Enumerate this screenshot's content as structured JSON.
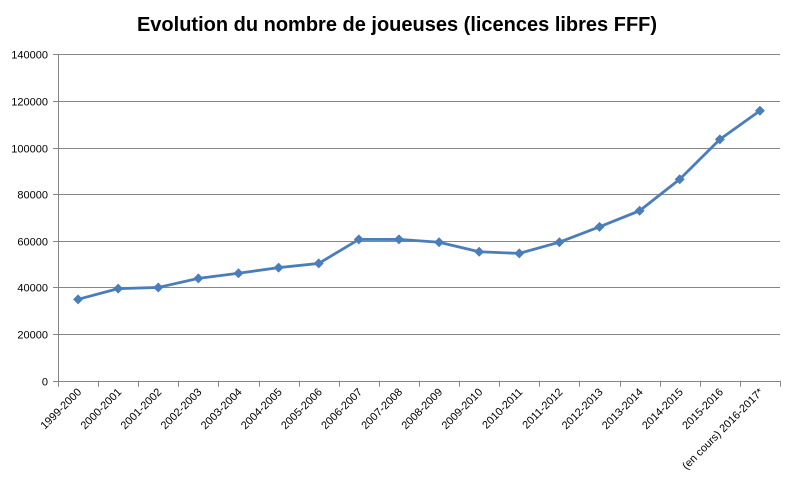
{
  "chart_data": {
    "type": "line",
    "title": "Evolution du nombre de joueuses (licences libres FFF)",
    "xlabel": "",
    "ylabel": "",
    "ylim": [
      0,
      140000
    ],
    "yticks": [
      "0",
      "20000",
      "40000",
      "60000",
      "80000",
      "100000",
      "120000",
      "140000"
    ],
    "grid": true,
    "legend": "none",
    "categories": [
      "1999-2000",
      "2000-2001",
      "2001-2002",
      "2002-2003",
      "2003-2004",
      "2004-2005",
      "2005-2006",
      "2006-2007",
      "2007-2008",
      "2008-2009",
      "2009-2010",
      "2010-2011",
      "2011-2012",
      "2012-2013",
      "2013-2014",
      "2014-2015",
      "2015-2016",
      "(en cours) 2016-2017*"
    ],
    "series": [
      {
        "values": [
          34900,
          39500,
          40000,
          43900,
          46100,
          48500,
          50300,
          60600,
          60600,
          59400,
          55300,
          54600,
          59400,
          66000,
          72900,
          86400,
          103500,
          115800
        ],
        "color": "#4a7ebb",
        "marker": "diamond"
      }
    ]
  }
}
